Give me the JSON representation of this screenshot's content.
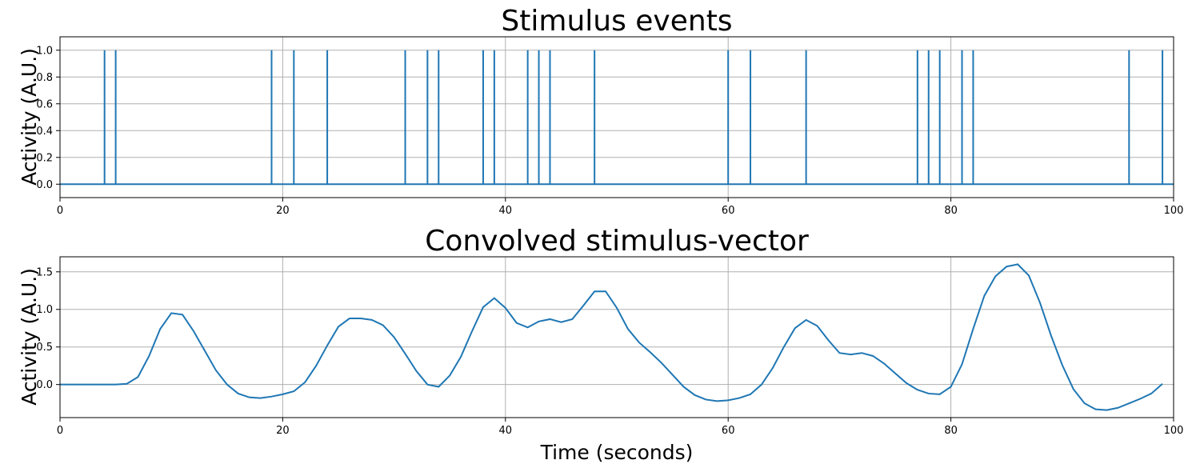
{
  "chart_data": [
    {
      "type": "line",
      "title": "Stimulus events",
      "xlabel": "",
      "ylabel": "Activity (A.U.)",
      "xlim": [
        0,
        100
      ],
      "ylim": [
        -0.1,
        1.1
      ],
      "xticks": [
        0,
        20,
        40,
        60,
        80,
        100
      ],
      "yticks": [
        0.0,
        0.2,
        0.4,
        0.6,
        0.8,
        1.0
      ],
      "xtick_labels": [
        "0",
        "20",
        "40",
        "60",
        "80",
        "100"
      ],
      "ytick_labels": [
        "0.0",
        "0.2",
        "0.4",
        "0.6",
        "0.8",
        "1.0"
      ],
      "grid": true,
      "style": "stem",
      "event_times": [
        4,
        5,
        19,
        21,
        24,
        31,
        33,
        34,
        38,
        39,
        42,
        43,
        44,
        48,
        60,
        62,
        67,
        77,
        78,
        79,
        81,
        82,
        96,
        99
      ],
      "event_value": 1.0,
      "baseline": 0.0,
      "color": "#1f77b4"
    },
    {
      "type": "line",
      "title": "Convolved stimulus-vector",
      "xlabel": "Time (seconds)",
      "ylabel": "Activity (A.U.)",
      "xlim": [
        0,
        100
      ],
      "ylim": [
        -0.44,
        1.7
      ],
      "xticks": [
        0,
        20,
        40,
        60,
        80,
        100
      ],
      "yticks": [
        0.0,
        0.5,
        1.0,
        1.5
      ],
      "xtick_labels": [
        "0",
        "20",
        "40",
        "60",
        "80",
        "100"
      ],
      "ytick_labels": [
        "0.0",
        "0.5",
        "1.0",
        "1.5"
      ],
      "grid": true,
      "color": "#1f77b4",
      "x": [
        0,
        1,
        2,
        3,
        4,
        5,
        6,
        7,
        8,
        9,
        10,
        11,
        12,
        13,
        14,
        15,
        16,
        17,
        18,
        19,
        20,
        21,
        22,
        23,
        24,
        25,
        26,
        27,
        28,
        29,
        30,
        31,
        32,
        33,
        34,
        35,
        36,
        37,
        38,
        39,
        40,
        41,
        42,
        43,
        44,
        45,
        46,
        47,
        48,
        49,
        50,
        51,
        52,
        53,
        54,
        55,
        56,
        57,
        58,
        59,
        60,
        61,
        62,
        63,
        64,
        65,
        66,
        67,
        68,
        69,
        70,
        71,
        72,
        73,
        74,
        75,
        76,
        77,
        78,
        79,
        80,
        81,
        82,
        83,
        84,
        85,
        86,
        87,
        88,
        89,
        90,
        91,
        92,
        93,
        94,
        95,
        96,
        97,
        98,
        99
      ],
      "y": [
        0,
        0,
        0,
        0,
        0,
        0,
        0.01,
        0.1,
        0.38,
        0.74,
        0.95,
        0.93,
        0.71,
        0.45,
        0.19,
        0,
        -0.12,
        -0.17,
        -0.18,
        -0.16,
        -0.13,
        -0.09,
        0.03,
        0.25,
        0.52,
        0.77,
        0.88,
        0.88,
        0.86,
        0.79,
        0.63,
        0.41,
        0.18,
        0,
        -0.03,
        0.12,
        0.37,
        0.71,
        1.03,
        1.15,
        1.02,
        0.82,
        0.76,
        0.84,
        0.87,
        0.83,
        0.87,
        1.05,
        1.24,
        1.24,
        1.02,
        0.74,
        0.56,
        0.43,
        0.29,
        0.13,
        -0.03,
        -0.14,
        -0.2,
        -0.22,
        -0.21,
        -0.18,
        -0.13,
        0,
        0.22,
        0.5,
        0.75,
        0.86,
        0.78,
        0.59,
        0.42,
        0.4,
        0.42,
        0.38,
        0.28,
        0.15,
        0.02,
        -0.07,
        -0.12,
        -0.13,
        -0.03,
        0.27,
        0.74,
        1.18,
        1.44,
        1.57,
        1.6,
        1.45,
        1.09,
        0.65,
        0.26,
        -0.06,
        -0.25,
        -0.33,
        -0.34,
        -0.31,
        -0.25,
        -0.19,
        -0.12,
        0.01
      ]
    }
  ]
}
